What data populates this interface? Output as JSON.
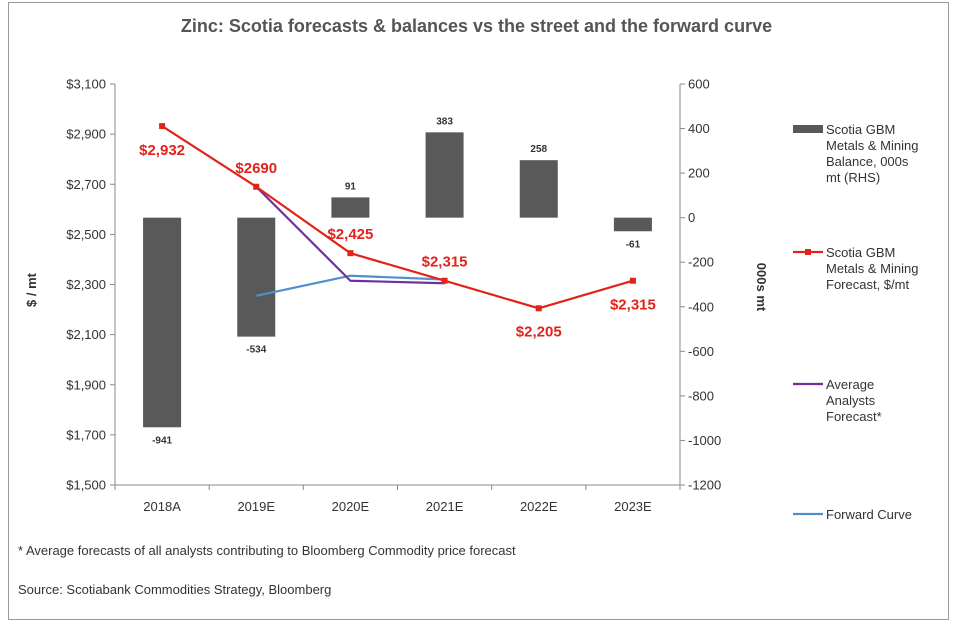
{
  "colors": {
    "balance": "#595959",
    "scotia": "#e2231a",
    "analysts": "#7030a0",
    "forward": "#4f8fcf",
    "axis": "#888888",
    "text": "#333333"
  },
  "footnote": "* Average forecasts of all analysts contributing to Bloomberg Commodity price forecast",
  "source": "Source: Scotiabank Commodities Strategy, Bloomberg",
  "chart_data": {
    "type": "bar",
    "title": "Zinc: Scotia forecasts & balances vs the street and the forward curve",
    "categories": [
      "2018A",
      "2019E",
      "2020E",
      "2021E",
      "2022E",
      "2023E"
    ],
    "ylabel": "$ / mt",
    "y2label": "000s mt",
    "ylim": [
      1500,
      3100
    ],
    "y2lim": [
      -1200,
      600
    ],
    "yticks": [
      "$1,500",
      "$1,700",
      "$1,900",
      "$2,100",
      "$2,300",
      "$2,500",
      "$2,700",
      "$2,900",
      "$3,100"
    ],
    "y2ticks": [
      "-1200",
      "-1000",
      "-800",
      "-600",
      "-400",
      "-200",
      "0",
      "200",
      "400",
      "600"
    ],
    "legend_position": "right",
    "series": [
      {
        "key": "balance",
        "name": "Scotia GBM Metals & Mining Balance, 000s mt (RHS)",
        "legend_lines": [
          "Scotia GBM",
          "Metals & Mining",
          "Balance, 000s",
          "mt (RHS)"
        ],
        "type": "bar",
        "axis": "right",
        "values": [
          -941,
          -534,
          91,
          383,
          258,
          -61
        ],
        "labels": [
          "-941",
          "-534",
          "91",
          "383",
          "258",
          "-61"
        ]
      },
      {
        "key": "scotia",
        "name": "Scotia GBM Metals & Mining Forecast, $/mt",
        "legend_lines": [
          "Scotia GBM",
          "Metals & Mining",
          "Forecast, $/mt"
        ],
        "type": "line",
        "axis": "left",
        "values": [
          2932,
          2690,
          2425,
          2315,
          2205,
          2315
        ],
        "labels": [
          "$2,932",
          "$2690",
          "$2,425",
          "$2,315",
          "$2,205",
          "$2,315"
        ]
      },
      {
        "key": "analysts",
        "name": "Average Analysts Forecast*",
        "legend_lines": [
          "Average",
          "Analysts",
          "Forecast*"
        ],
        "type": "line",
        "axis": "left",
        "values": [
          null,
          2690,
          2315,
          2305,
          null,
          null
        ]
      },
      {
        "key": "forward",
        "name": "Forward Curve",
        "legend_lines": [
          "Forward Curve"
        ],
        "type": "line",
        "axis": "left",
        "values": [
          null,
          2255,
          2335,
          2320,
          null,
          null
        ]
      }
    ]
  }
}
